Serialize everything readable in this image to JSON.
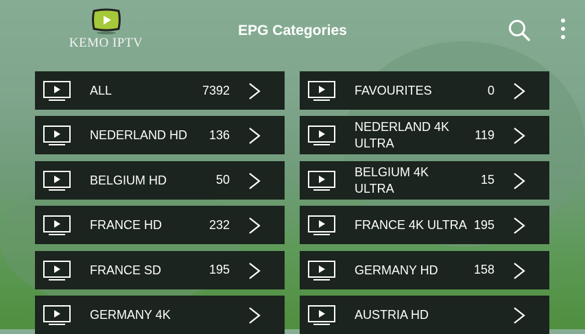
{
  "header": {
    "logo_text": "KEMO IPTV",
    "title": "EPG Categories",
    "search_icon": "search-icon",
    "menu_icon": "more-vert-icon"
  },
  "colors": {
    "card_bg": "#1b241e",
    "logo_green": "#a6c93a"
  },
  "categories": [
    {
      "name": "ALL",
      "count": "7392"
    },
    {
      "name": "FAVOURITES",
      "count": "0"
    },
    {
      "name": "NEDERLAND HD",
      "count": "136"
    },
    {
      "name": "NEDERLAND 4K ULTRA",
      "count": "119"
    },
    {
      "name": "BELGIUM HD",
      "count": "50"
    },
    {
      "name": "BELGIUM 4K ULTRA",
      "count": "15"
    },
    {
      "name": "FRANCE HD",
      "count": "232"
    },
    {
      "name": "FRANCE 4K ULTRA",
      "count": "195"
    },
    {
      "name": "FRANCE SD",
      "count": "195"
    },
    {
      "name": "GERMANY HD",
      "count": "158"
    },
    {
      "name": "GERMANY 4K",
      "count": ""
    },
    {
      "name": "AUSTRIA HD",
      "count": ""
    }
  ]
}
